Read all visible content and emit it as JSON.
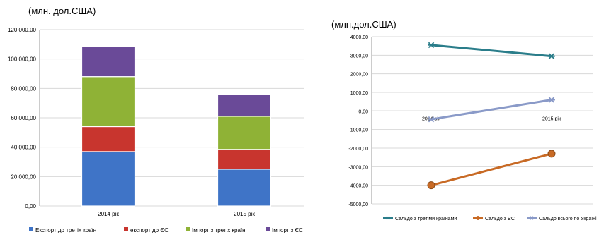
{
  "colors": {
    "export_third": "#3f74c7",
    "export_eu": "#c8352e",
    "import_third": "#8fb236",
    "import_eu": "#6a4a98",
    "saldo_third": "#2a7d8a",
    "saldo_eu": "#c86a25",
    "saldo_total": "#8a9ac8",
    "grid": "#d8d8d8"
  },
  "chart_data": [
    {
      "type": "bar",
      "stacked": true,
      "unit_label": "(млн. дол.США)",
      "categories": [
        "2014 рік",
        "2015 рік"
      ],
      "series": [
        {
          "name": "Експорт до третіх країн",
          "values": [
            37000,
            25000
          ],
          "color_key": "export_third"
        },
        {
          "name": "експорт до ЄС",
          "values": [
            17000,
            13500
          ],
          "color_key": "export_eu"
        },
        {
          "name": "Імпорт з третіх країн",
          "values": [
            34000,
            22500
          ],
          "color_key": "import_third"
        },
        {
          "name": "Імпорт з ЄС",
          "values": [
            20500,
            15000
          ],
          "color_key": "import_eu"
        }
      ],
      "ylim": [
        0,
        120000
      ],
      "yticks": [
        0,
        20000,
        40000,
        60000,
        80000,
        100000,
        120000
      ],
      "ytick_labels": [
        "0,00",
        "20 000,00",
        "40 000,00",
        "60 000,00",
        "80 000,00",
        "100 000,00",
        "120 000,00"
      ],
      "grid": true,
      "legend_position": "bottom"
    },
    {
      "type": "line",
      "unit_label": "(млн.дол.США)",
      "categories": [
        "2014 рік",
        "2015 рік"
      ],
      "series": [
        {
          "name": "Сальдо з третіми країнами",
          "values": [
            3550,
            2950
          ],
          "color_key": "saldo_third",
          "marker": "star"
        },
        {
          "name": "Сальдо з ЄС",
          "values": [
            -4000,
            -2300
          ],
          "color_key": "saldo_eu",
          "marker": "circle"
        },
        {
          "name": "Сальдо всього по Україні",
          "values": [
            -450,
            600
          ],
          "color_key": "saldo_total",
          "marker": "star"
        }
      ],
      "ylim": [
        -5000,
        4000
      ],
      "yticks": [
        -5000,
        -4000,
        -3000,
        -2000,
        -1000,
        0,
        1000,
        2000,
        3000,
        4000
      ],
      "ytick_labels": [
        "-5000,00",
        "-4000,00",
        "-3000,00",
        "-2000,00",
        "-1000,00",
        "0,00",
        "1000,00",
        "2000,00",
        "3000,00",
        "4000,00"
      ],
      "grid": true,
      "legend_position": "bottom"
    }
  ]
}
